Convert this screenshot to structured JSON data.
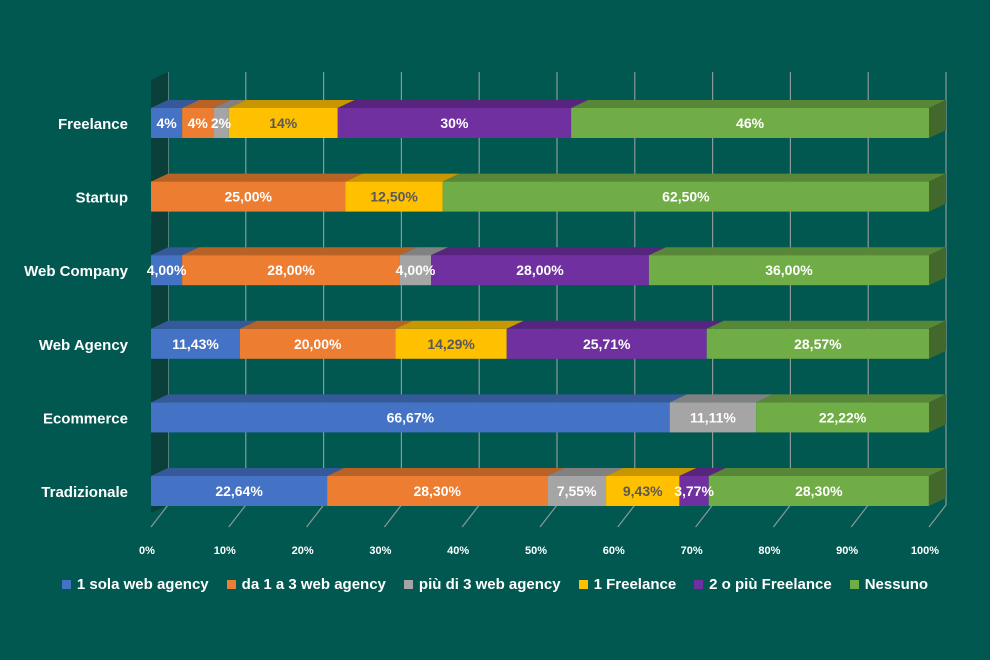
{
  "chart_data": {
    "type": "bar",
    "stacked": "percent",
    "orientation": "horizontal",
    "categories": [
      "Freelance",
      "Startup",
      "Web Company",
      "Web Agency",
      "Ecommerce",
      "Tradizionale"
    ],
    "series": [
      {
        "name": "1 sola web agency",
        "color": "#4472C4",
        "values": [
          4,
          0,
          4.0,
          11.43,
          66.67,
          22.64
        ],
        "labels": [
          "4%",
          "",
          "4,00%",
          "11,43%",
          "66,67%",
          "22,64%"
        ]
      },
      {
        "name": "da 1 a 3 web agency",
        "color": "#ED7D31",
        "values": [
          4,
          25.0,
          28.0,
          20.0,
          0,
          28.3
        ],
        "labels": [
          "4%",
          "25,00%",
          "28,00%",
          "20,00%",
          "",
          "28,30%"
        ]
      },
      {
        "name": "più di 3 web agency",
        "color": "#A5A5A5",
        "values": [
          2,
          0,
          4.0,
          0,
          11.11,
          7.55
        ],
        "labels": [
          "2%",
          "",
          "4,00%",
          "",
          "11,11%",
          "7,55%"
        ]
      },
      {
        "name": "1 Freelance",
        "color": "#FFC000",
        "values": [
          14,
          12.5,
          0,
          14.29,
          0,
          9.43
        ],
        "labels": [
          "14%",
          "12,50%",
          "",
          "14,29%",
          "",
          "9,43%"
        ]
      },
      {
        "name": "2 o più Freelance",
        "color": "#7030A0",
        "values": [
          30,
          0,
          28.0,
          25.71,
          0,
          3.77
        ],
        "labels": [
          "30%",
          "",
          "28,00%",
          "25,71%",
          "",
          "3,77%"
        ]
      },
      {
        "name": "Nessuno",
        "color": "#70AD47",
        "values": [
          46,
          62.5,
          36.0,
          28.57,
          22.22,
          28.3
        ],
        "labels": [
          "46%",
          "62,50%",
          "36,00%",
          "28,57%",
          "22,22%",
          "28,30%"
        ]
      }
    ],
    "xticks": [
      "0%",
      "10%",
      "20%",
      "30%",
      "40%",
      "50%",
      "60%",
      "70%",
      "80%",
      "90%",
      "100%"
    ],
    "xlim": [
      0,
      100
    ],
    "grid": true,
    "legend_position": "bottom",
    "title": "",
    "xlabel": "",
    "ylabel": ""
  }
}
